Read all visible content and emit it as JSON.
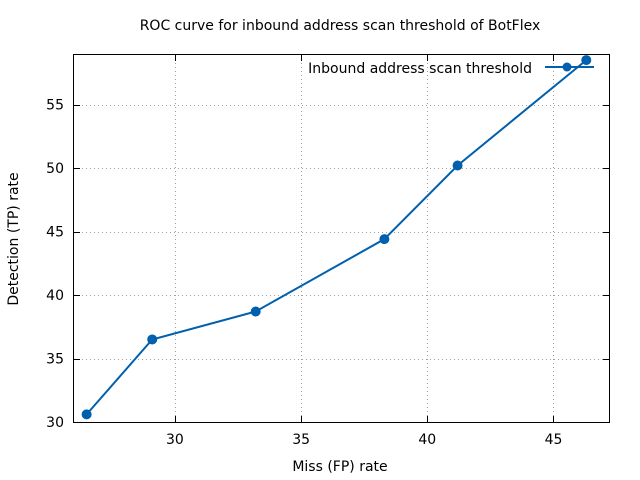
{
  "chart_data": {
    "type": "line",
    "title": "ROC curve for inbound address scan threshold of BotFlex",
    "xlabel": "Miss (FP) rate",
    "ylabel": "Detection (TP) rate",
    "xlim": [
      26.0,
      47.2
    ],
    "ylim": [
      30,
      58.9
    ],
    "xticks": [
      30,
      35,
      40,
      45
    ],
    "yticks": [
      30,
      35,
      40,
      45,
      50,
      55
    ],
    "xtick_labels": [
      "30",
      "35",
      "40",
      "45"
    ],
    "ytick_labels": [
      "30",
      "35",
      "40",
      "45",
      "50",
      "55"
    ],
    "grid": true,
    "legend_position": "top-right",
    "series": [
      {
        "name": "Inbound address scan threshold",
        "color": "#0060ad",
        "marker": "circle",
        "x": [
          26.5,
          29.1,
          33.2,
          38.3,
          41.2,
          46.3
        ],
        "y": [
          30.6,
          36.5,
          38.7,
          44.4,
          50.2,
          58.5
        ]
      }
    ]
  }
}
